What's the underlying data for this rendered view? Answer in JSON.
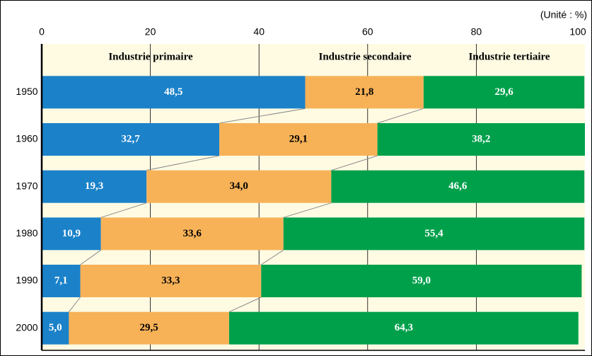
{
  "chart_data": {
    "type": "stacked-bar-horizontal",
    "unit": "(Unité : %)",
    "categories": [
      "1950",
      "1960",
      "1970",
      "1980",
      "1990",
      "2000"
    ],
    "series": [
      {
        "name": "Industrie primaire",
        "color": "#1b82c9",
        "text_color": "#ffffff",
        "values": [
          48.5,
          32.7,
          19.3,
          10.9,
          7.1,
          5.0
        ],
        "value_labels": [
          "48,5",
          "32,7",
          "19,3",
          "10,9",
          "7,1",
          "5,0"
        ]
      },
      {
        "name": "Industrie secondaire",
        "color": "#f7b258",
        "text_color": "#000000",
        "values": [
          21.8,
          29.1,
          34.0,
          33.6,
          33.3,
          29.5
        ],
        "value_labels": [
          "21,8",
          "29,1",
          "34,0",
          "33,6",
          "33,3",
          "29,5"
        ]
      },
      {
        "name": "Industrie tertiaire",
        "color": "#00a04b",
        "text_color": "#ffffff",
        "values": [
          29.6,
          38.2,
          46.6,
          55.4,
          59.0,
          64.3
        ],
        "value_labels": [
          "29,6",
          "38,2",
          "46,6",
          "55,4",
          "59,0",
          "64,3"
        ]
      }
    ],
    "xlim": [
      0,
      100
    ],
    "xticks": [
      0,
      20,
      40,
      60,
      80,
      100
    ],
    "grid": true
  }
}
